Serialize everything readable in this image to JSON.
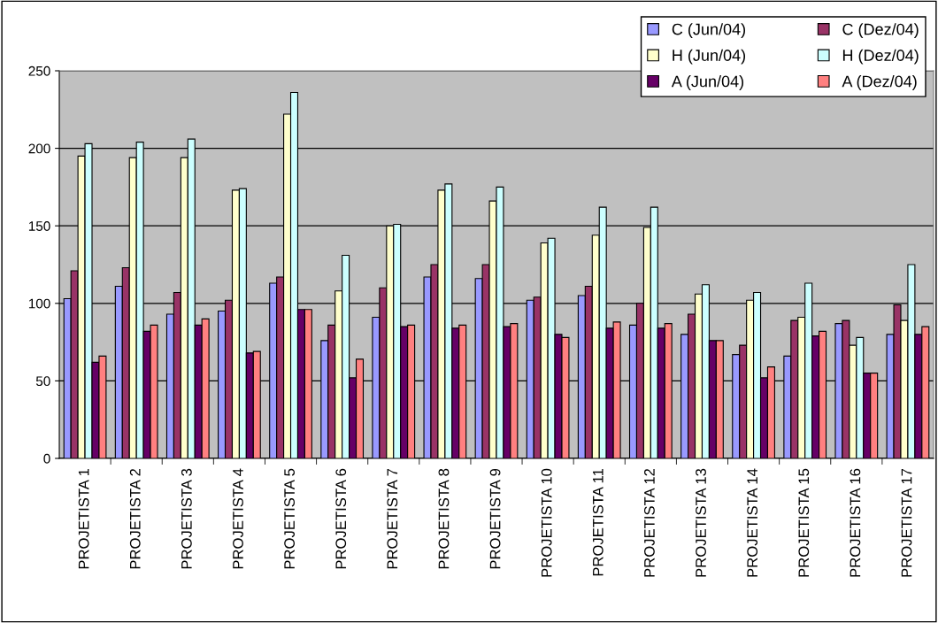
{
  "chart_data": {
    "type": "bar",
    "categories": [
      "PROJETISTA 1",
      "PROJETISTA 2",
      "PROJETISTA 3",
      "PROJETISTA 4",
      "PROJETISTA 5",
      "PROJETISTA 6",
      "PROJETISTA 7",
      "PROJETISTA 8",
      "PROJETISTA 9",
      "PROJETISTA 10",
      "PROJETISTA 11",
      "PROJETISTA 12",
      "PROJETISTA 13",
      "PROJETISTA 14",
      "PROJETISTA 15",
      "PROJETISTA 16",
      "PROJETISTA 17"
    ],
    "series": [
      {
        "name": "C (Jun/04)",
        "color": "#9999ff",
        "values": [
          103,
          111,
          93,
          95,
          113,
          76,
          91,
          117,
          116,
          102,
          105,
          86,
          80,
          67,
          66,
          87,
          80
        ]
      },
      {
        "name": "C (Dez/04)",
        "color": "#993366",
        "values": [
          121,
          123,
          107,
          102,
          117,
          86,
          110,
          125,
          125,
          104,
          111,
          100,
          93,
          73,
          89,
          89,
          99
        ]
      },
      {
        "name": "H (Jun/04)",
        "color": "#ffffcc",
        "values": [
          195,
          194,
          194,
          173,
          222,
          108,
          150,
          173,
          166,
          139,
          144,
          149,
          106,
          102,
          91,
          73,
          89
        ]
      },
      {
        "name": "H (Dez/04)",
        "color": "#ccffff",
        "values": [
          203,
          204,
          206,
          174,
          236,
          131,
          151,
          177,
          175,
          142,
          162,
          162,
          112,
          107,
          113,
          78,
          125
        ]
      },
      {
        "name": "A (Jun/04)",
        "color": "#660066",
        "values": [
          62,
          82,
          86,
          68,
          96,
          52,
          85,
          84,
          85,
          80,
          84,
          84,
          76,
          52,
          79,
          55,
          80
        ]
      },
      {
        "name": "A (Dez/04)",
        "color": "#ff8080",
        "values": [
          66,
          86,
          90,
          69,
          96,
          64,
          86,
          86,
          87,
          78,
          88,
          87,
          76,
          59,
          82,
          55,
          85
        ]
      }
    ],
    "ylim": [
      0,
      250
    ],
    "yticks": [
      0,
      50,
      100,
      150,
      200,
      250
    ],
    "grid": "y",
    "legend": "top right"
  }
}
